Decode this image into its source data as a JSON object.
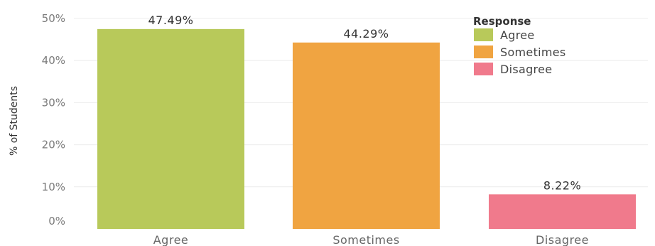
{
  "chart_data": {
    "type": "bar",
    "categories": [
      "Agree",
      "Sometimes",
      "Disagree"
    ],
    "values": [
      47.49,
      44.29,
      8.22
    ],
    "data_labels": [
      "47.49%",
      "44.29%",
      "8.22%"
    ],
    "colors": [
      "#b8c95a",
      "#f0a441",
      "#f07a8c"
    ],
    "ylabel": "% of Students",
    "ylim": [
      0,
      50
    ],
    "yticks": [
      0,
      10,
      20,
      30,
      40,
      50
    ],
    "ytick_labels": [
      "0%",
      "10%",
      "20%",
      "30%",
      "40%",
      "50%"
    ],
    "grid": true,
    "legend": {
      "title": "Response",
      "placement": "top-right",
      "entries": [
        "Agree",
        "Sometimes",
        "Disagree"
      ]
    }
  }
}
